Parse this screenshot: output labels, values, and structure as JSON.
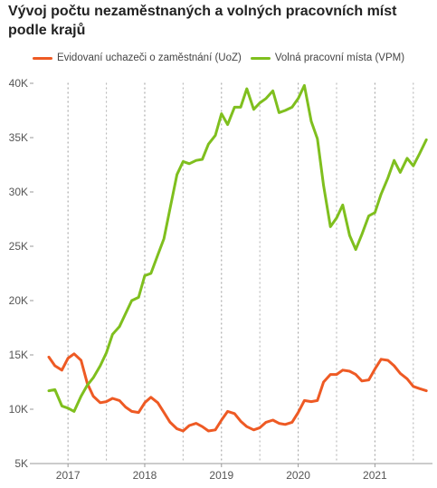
{
  "title": "Vývoj počtu nezaměstnaných a volných pracovních míst podle krajů",
  "chart_data": {
    "type": "line",
    "title": "Vývoj počtu nezaměstnaných a volných pracovních míst podle krajů",
    "xlabel": "",
    "ylabel": "",
    "ylim": [
      5000,
      40000
    ],
    "xlim": [
      2016.55,
      2021.75
    ],
    "yticks": [
      5000,
      10000,
      15000,
      20000,
      25000,
      30000,
      35000,
      40000
    ],
    "ytick_labels": [
      "5K",
      "10K",
      "15K",
      "20K",
      "25K",
      "30K",
      "35K",
      "40K"
    ],
    "xticks": [
      2017,
      2018,
      2019,
      2020,
      2021
    ],
    "xtick_labels": [
      "2017",
      "2018",
      "2019",
      "2020",
      "2021"
    ],
    "grid": "vertical dotted",
    "legend_position": "top",
    "series": [
      {
        "name": "Evidovaní uchazeči o zaměstnání (UoZ)",
        "color": "#ee5a24",
        "x": [
          2016.75,
          2016.83,
          2016.92,
          2017.0,
          2017.08,
          2017.17,
          2017.25,
          2017.33,
          2017.42,
          2017.5,
          2017.58,
          2017.67,
          2017.75,
          2017.83,
          2017.92,
          2018.0,
          2018.08,
          2018.17,
          2018.25,
          2018.33,
          2018.42,
          2018.5,
          2018.58,
          2018.67,
          2018.75,
          2018.83,
          2018.92,
          2019.0,
          2019.08,
          2019.17,
          2019.25,
          2019.33,
          2019.42,
          2019.5,
          2019.58,
          2019.67,
          2019.75,
          2019.83,
          2019.92,
          2020.0,
          2020.08,
          2020.17,
          2020.25,
          2020.33,
          2020.42,
          2020.5,
          2020.58,
          2020.67,
          2020.75,
          2020.83,
          2020.92,
          2021.0,
          2021.08,
          2021.17,
          2021.25,
          2021.33,
          2021.42,
          2021.5,
          2021.58,
          2021.67
        ],
        "values": [
          14800,
          14000,
          13600,
          14700,
          15100,
          14500,
          12400,
          11200,
          10600,
          10700,
          11000,
          10800,
          10200,
          9800,
          9700,
          10600,
          11100,
          10600,
          9700,
          8800,
          8200,
          8000,
          8500,
          8700,
          8400,
          8000,
          8100,
          9000,
          9800,
          9600,
          8900,
          8400,
          8100,
          8300,
          8800,
          9000,
          8700,
          8600,
          8800,
          9700,
          10800,
          10700,
          10800,
          12500,
          13200,
          13200,
          13600,
          13500,
          13200,
          12600,
          12700,
          13700,
          14600,
          14500,
          14000,
          13300,
          12800,
          12100,
          11900,
          11700
        ]
      },
      {
        "name": "Volná pracovní místa (VPM)",
        "color": "#7fbf1e",
        "x": [
          2016.75,
          2016.83,
          2016.92,
          2017.0,
          2017.08,
          2017.17,
          2017.25,
          2017.33,
          2017.42,
          2017.5,
          2017.58,
          2017.67,
          2017.75,
          2017.83,
          2017.92,
          2018.0,
          2018.08,
          2018.17,
          2018.25,
          2018.33,
          2018.42,
          2018.5,
          2018.58,
          2018.67,
          2018.75,
          2018.83,
          2018.92,
          2019.0,
          2019.08,
          2019.17,
          2019.25,
          2019.33,
          2019.42,
          2019.5,
          2019.58,
          2019.67,
          2019.75,
          2019.83,
          2019.92,
          2020.0,
          2020.08,
          2020.17,
          2020.25,
          2020.33,
          2020.42,
          2020.5,
          2020.58,
          2020.67,
          2020.75,
          2020.83,
          2020.92,
          2021.0,
          2021.08,
          2021.17,
          2021.25,
          2021.33,
          2021.42,
          2021.5,
          2021.58,
          2021.67
        ],
        "values": [
          11700,
          11800,
          10300,
          10100,
          9800,
          11200,
          12200,
          12900,
          14000,
          15200,
          16900,
          17600,
          18800,
          20000,
          20300,
          22300,
          22500,
          24200,
          25700,
          28500,
          31600,
          32800,
          32600,
          32900,
          33000,
          34400,
          35200,
          37200,
          36200,
          37800,
          37800,
          39500,
          37600,
          38200,
          38600,
          39300,
          37300,
          37500,
          37800,
          38600,
          39800,
          36500,
          34900,
          30600,
          26800,
          27600,
          28800,
          26000,
          24700,
          26100,
          27800,
          28100,
          29800,
          31300,
          32900,
          31800,
          33100,
          32400,
          33500,
          34800
        ]
      }
    ]
  }
}
